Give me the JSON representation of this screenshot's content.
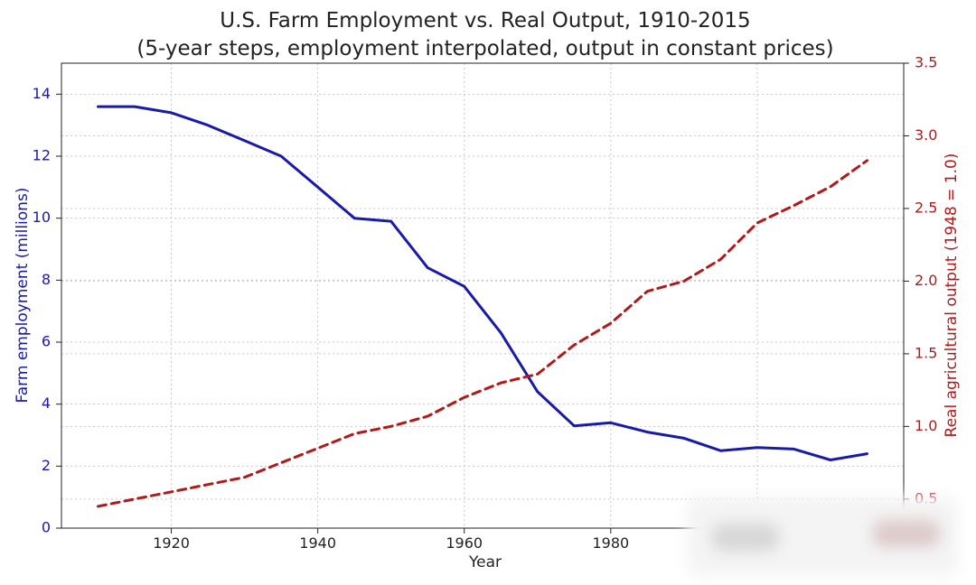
{
  "chart_data": {
    "type": "line",
    "title": "U.S. Farm Employment vs. Real Output, 1910-2015",
    "subtitle": "(5-year steps, employment interpolated, output in constant prices)",
    "xlabel": "Year",
    "ylabel_left": "Farm employment (millions)",
    "ylabel_right": "Real agricultural output (1948 = 1.0)",
    "xlim": [
      1905,
      2020
    ],
    "ylim_left": [
      0,
      15
    ],
    "ylim_right": [
      0.3,
      3.5
    ],
    "x_ticks": [
      1920,
      1940,
      1960,
      1980
    ],
    "y_ticks_left": [
      0,
      2,
      4,
      6,
      8,
      10,
      12,
      14
    ],
    "y_ticks_right": [
      "0.5",
      "1.0",
      "1.5",
      "2.0",
      "2.5",
      "3.0",
      "3.5"
    ],
    "grid": true,
    "colors": {
      "employment": "#1a1aa8",
      "output": "#b01a1a"
    },
    "x": [
      1910,
      1915,
      1920,
      1925,
      1930,
      1935,
      1940,
      1945,
      1950,
      1955,
      1960,
      1965,
      1970,
      1975,
      1980,
      1985,
      1990,
      1995,
      2000,
      2005,
      2010,
      2015
    ],
    "series": [
      {
        "key": "employment",
        "axis": "left",
        "style": "solid",
        "values": [
          13.6,
          13.6,
          13.4,
          13.0,
          12.5,
          12.0,
          11.0,
          10.0,
          9.9,
          8.4,
          7.8,
          6.3,
          4.4,
          3.3,
          3.4,
          3.1,
          2.9,
          2.5,
          2.6,
          2.55,
          2.2,
          2.4
        ]
      },
      {
        "key": "output",
        "axis": "right",
        "style": "dashed",
        "values": [
          0.45,
          0.5,
          0.55,
          0.6,
          0.65,
          0.75,
          0.85,
          0.95,
          1.0,
          1.07,
          1.2,
          1.3,
          1.36,
          1.56,
          1.71,
          1.93,
          2.0,
          2.15,
          2.4,
          2.52,
          2.65,
          2.83
        ]
      }
    ]
  }
}
